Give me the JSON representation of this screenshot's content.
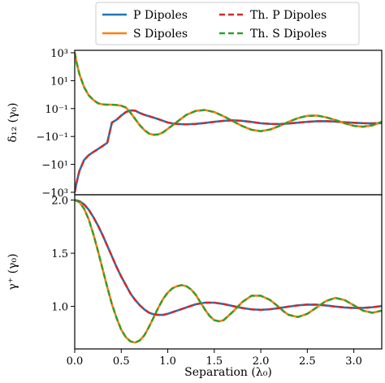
{
  "chart_data": {
    "type": "line",
    "xlabel": "Separation (λ₀)",
    "x_ticks": [
      "0.0",
      "0.5",
      "1.0",
      "1.5",
      "2.0",
      "2.5",
      "3.0"
    ],
    "x_tick_values": [
      0.0,
      0.5,
      1.0,
      1.5,
      2.0,
      2.5,
      3.0
    ],
    "xlim": [
      0.0,
      3.3
    ],
    "legend": {
      "placement": "top-center",
      "entries": [
        {
          "label": "P Dipoles",
          "color": "#1f77b4",
          "style": "solid"
        },
        {
          "label": "S Dipoles",
          "color": "#ff7f0e",
          "style": "solid"
        },
        {
          "label": "Th. P Dipoles",
          "color": "#d62728",
          "style": "dashed"
        },
        {
          "label": "Th. S Dipoles",
          "color": "#2ca02c",
          "style": "dashed"
        }
      ]
    },
    "panels": [
      {
        "ylabel": "δ₁₂ (γ₀)",
        "yscale": "symlog",
        "ylim": [
          -1500,
          1500
        ],
        "y_ticks": [
          "10³",
          "10¹",
          "10⁻¹",
          "−10⁻¹",
          "−10¹",
          "−10³"
        ],
        "y_tick_values": [
          1000,
          10,
          0.1,
          -0.1,
          -10,
          -1000
        ],
        "series": [
          {
            "label_ref": "P Dipoles",
            "x": [
              0.0,
              0.02,
              0.05,
              0.1,
              0.15,
              0.2,
              0.25,
              0.3,
              0.35,
              0.4,
              0.45,
              0.5,
              0.55,
              0.6,
              0.65,
              0.7,
              0.75,
              0.8,
              0.85,
              0.9,
              0.95,
              1.0,
              1.05,
              1.1,
              1.15,
              1.2,
              1.3,
              1.4,
              1.5,
              1.6,
              1.7,
              1.8,
              1.9,
              2.0,
              2.1,
              2.2,
              2.3,
              2.4,
              2.5,
              2.6,
              2.7,
              2.8,
              2.9,
              3.0,
              3.1,
              3.2,
              3.3
            ],
            "y": [
              -1000,
              -200,
              -30,
              -5,
              -2.2,
              -1.3,
              -0.8,
              -0.48,
              -0.28,
              0.0,
              0.02,
              0.05,
              0.075,
              0.087,
              0.085,
              0.068,
              0.055,
              0.045,
              0.035,
              0.024,
              0.012,
              0.0,
              -0.006,
              -0.01,
              -0.012,
              -0.013,
              -0.01,
              -0.003,
              0.005,
              0.012,
              0.016,
              0.012,
              0.004,
              -0.005,
              -0.01,
              -0.011,
              -0.007,
              -0.001,
              0.005,
              0.009,
              0.01,
              0.007,
              0.002,
              -0.002,
              -0.005,
              -0.006,
              -0.004
            ]
          },
          {
            "label_ref": "S Dipoles",
            "x": [
              0.0,
              0.02,
              0.05,
              0.1,
              0.15,
              0.2,
              0.25,
              0.3,
              0.35,
              0.4,
              0.45,
              0.5,
              0.55,
              0.6,
              0.65,
              0.7,
              0.75,
              0.8,
              0.85,
              0.9,
              0.95,
              1.0,
              1.05,
              1.1,
              1.15,
              1.2,
              1.3,
              1.4,
              1.5,
              1.6,
              1.7,
              1.8,
              1.9,
              2.0,
              2.1,
              2.2,
              2.3,
              2.4,
              2.5,
              2.6,
              2.7,
              2.8,
              2.9,
              3.0,
              3.1,
              3.2,
              3.3
            ],
            "y": [
              1000,
              200,
              30,
              3.5,
              0.9,
              0.42,
              0.24,
              0.2,
              0.19,
              0.19,
              0.18,
              0.16,
              0.12,
              0.07,
              0.025,
              -0.02,
              -0.055,
              -0.08,
              -0.088,
              -0.085,
              -0.07,
              -0.045,
              -0.02,
              0.005,
              0.03,
              0.055,
              0.083,
              0.09,
              0.075,
              0.045,
              0.01,
              -0.025,
              -0.052,
              -0.062,
              -0.05,
              -0.025,
              0.005,
              0.032,
              0.048,
              0.05,
              0.038,
              0.018,
              -0.005,
              -0.024,
              -0.03,
              -0.02,
              0.005
            ]
          },
          {
            "label_ref": "Th. P Dipoles",
            "x": [
              0.0,
              0.02,
              0.05,
              0.1,
              0.15,
              0.2,
              0.25,
              0.3,
              0.35,
              0.4,
              0.45,
              0.5,
              0.55,
              0.6,
              0.65,
              0.7,
              0.75,
              0.8,
              0.85,
              0.9,
              0.95,
              1.0,
              1.05,
              1.1,
              1.15,
              1.2,
              1.3,
              1.4,
              1.5,
              1.6,
              1.7,
              1.8,
              1.9,
              2.0,
              2.1,
              2.2,
              2.3,
              2.4,
              2.5,
              2.6,
              2.7,
              2.8,
              2.9,
              3.0,
              3.1,
              3.2,
              3.3
            ],
            "y": [
              -1000,
              -200,
              -30,
              -5,
              -2.2,
              -1.3,
              -0.8,
              -0.48,
              -0.28,
              0.0,
              0.02,
              0.05,
              0.075,
              0.087,
              0.085,
              0.068,
              0.055,
              0.045,
              0.035,
              0.024,
              0.012,
              0.0,
              -0.006,
              -0.01,
              -0.012,
              -0.013,
              -0.01,
              -0.003,
              0.005,
              0.012,
              0.016,
              0.012,
              0.004,
              -0.005,
              -0.01,
              -0.011,
              -0.007,
              -0.001,
              0.005,
              0.009,
              0.01,
              0.007,
              0.002,
              -0.002,
              -0.005,
              -0.006,
              -0.004
            ]
          },
          {
            "label_ref": "Th. S Dipoles",
            "x": [
              0.0,
              0.02,
              0.05,
              0.1,
              0.15,
              0.2,
              0.25,
              0.3,
              0.35,
              0.4,
              0.45,
              0.5,
              0.55,
              0.6,
              0.65,
              0.7,
              0.75,
              0.8,
              0.85,
              0.9,
              0.95,
              1.0,
              1.05,
              1.1,
              1.15,
              1.2,
              1.3,
              1.4,
              1.5,
              1.6,
              1.7,
              1.8,
              1.9,
              2.0,
              2.1,
              2.2,
              2.3,
              2.4,
              2.5,
              2.6,
              2.7,
              2.8,
              2.9,
              3.0,
              3.1,
              3.2,
              3.3
            ],
            "y": [
              1000,
              200,
              30,
              3.5,
              0.9,
              0.42,
              0.24,
              0.2,
              0.19,
              0.19,
              0.18,
              0.16,
              0.12,
              0.07,
              0.025,
              -0.02,
              -0.055,
              -0.08,
              -0.088,
              -0.085,
              -0.07,
              -0.045,
              -0.02,
              0.005,
              0.03,
              0.055,
              0.083,
              0.09,
              0.075,
              0.045,
              0.01,
              -0.025,
              -0.052,
              -0.062,
              -0.05,
              -0.025,
              0.005,
              0.032,
              0.048,
              0.05,
              0.038,
              0.018,
              -0.005,
              -0.024,
              -0.03,
              -0.02,
              0.005
            ]
          }
        ]
      },
      {
        "ylabel": "γ⁺ (γ₀)",
        "yscale": "linear",
        "ylim": [
          0.6,
          2.05
        ],
        "y_ticks": [
          "1.0",
          "1.5",
          "2.0"
        ],
        "y_tick_values": [
          1.0,
          1.5,
          2.0
        ],
        "series": [
          {
            "label_ref": "P Dipoles",
            "x": [
              0.0,
              0.05,
              0.1,
              0.15,
              0.2,
              0.25,
              0.3,
              0.35,
              0.4,
              0.45,
              0.5,
              0.55,
              0.6,
              0.65,
              0.7,
              0.75,
              0.8,
              0.85,
              0.9,
              0.95,
              1.0,
              1.05,
              1.1,
              1.15,
              1.2,
              1.3,
              1.4,
              1.5,
              1.6,
              1.7,
              1.8,
              1.9,
              2.0,
              2.1,
              2.2,
              2.3,
              2.4,
              2.5,
              2.6,
              2.7,
              2.8,
              2.9,
              3.0,
              3.1,
              3.2,
              3.3
            ],
            "y": [
              2.0,
              1.99,
              1.96,
              1.91,
              1.84,
              1.76,
              1.67,
              1.57,
              1.47,
              1.37,
              1.28,
              1.2,
              1.12,
              1.06,
              1.01,
              0.97,
              0.94,
              0.925,
              0.92,
              0.92,
              0.93,
              0.945,
              0.96,
              0.975,
              0.99,
              1.02,
              1.035,
              1.035,
              1.022,
              1.003,
              0.985,
              0.972,
              0.968,
              0.973,
              0.985,
              0.998,
              1.01,
              1.017,
              1.016,
              1.009,
              0.998,
              0.99,
              0.985,
              0.986,
              0.992,
              1.003
            ]
          },
          {
            "label_ref": "S Dipoles",
            "x": [
              0.0,
              0.05,
              0.1,
              0.15,
              0.2,
              0.25,
              0.3,
              0.35,
              0.4,
              0.45,
              0.5,
              0.55,
              0.6,
              0.65,
              0.7,
              0.75,
              0.8,
              0.85,
              0.9,
              0.95,
              1.0,
              1.05,
              1.1,
              1.15,
              1.2,
              1.25,
              1.3,
              1.35,
              1.4,
              1.45,
              1.5,
              1.55,
              1.6,
              1.7,
              1.8,
              1.9,
              2.0,
              2.1,
              2.2,
              2.25,
              2.3,
              2.4,
              2.5,
              2.6,
              2.7,
              2.8,
              2.9,
              3.0,
              3.1,
              3.2,
              3.3
            ],
            "y": [
              2.0,
              1.98,
              1.92,
              1.82,
              1.68,
              1.52,
              1.35,
              1.18,
              1.02,
              0.89,
              0.78,
              0.71,
              0.67,
              0.66,
              0.68,
              0.73,
              0.81,
              0.9,
              0.99,
              1.07,
              1.13,
              1.17,
              1.19,
              1.2,
              1.19,
              1.16,
              1.11,
              1.04,
              0.97,
              0.91,
              0.87,
              0.86,
              0.87,
              0.95,
              1.04,
              1.1,
              1.1,
              1.06,
              0.99,
              0.95,
              0.92,
              0.9,
              0.93,
              0.99,
              1.05,
              1.08,
              1.06,
              1.01,
              0.96,
              0.94,
              0.96
            ]
          },
          {
            "label_ref": "Th. P Dipoles",
            "x": [
              0.0,
              0.05,
              0.1,
              0.15,
              0.2,
              0.25,
              0.3,
              0.35,
              0.4,
              0.45,
              0.5,
              0.55,
              0.6,
              0.65,
              0.7,
              0.75,
              0.8,
              0.85,
              0.9,
              0.95,
              1.0,
              1.05,
              1.1,
              1.15,
              1.2,
              1.3,
              1.4,
              1.5,
              1.6,
              1.7,
              1.8,
              1.9,
              2.0,
              2.1,
              2.2,
              2.3,
              2.4,
              2.5,
              2.6,
              2.7,
              2.8,
              2.9,
              3.0,
              3.1,
              3.2,
              3.3
            ],
            "y": [
              2.0,
              1.99,
              1.96,
              1.91,
              1.84,
              1.76,
              1.67,
              1.57,
              1.47,
              1.37,
              1.28,
              1.2,
              1.12,
              1.06,
              1.01,
              0.97,
              0.94,
              0.925,
              0.92,
              0.92,
              0.93,
              0.945,
              0.96,
              0.975,
              0.99,
              1.02,
              1.035,
              1.035,
              1.022,
              1.003,
              0.985,
              0.972,
              0.968,
              0.973,
              0.985,
              0.998,
              1.01,
              1.017,
              1.016,
              1.009,
              0.998,
              0.99,
              0.985,
              0.986,
              0.992,
              1.003
            ]
          },
          {
            "label_ref": "Th. S Dipoles",
            "x": [
              0.0,
              0.05,
              0.1,
              0.15,
              0.2,
              0.25,
              0.3,
              0.35,
              0.4,
              0.45,
              0.5,
              0.55,
              0.6,
              0.65,
              0.7,
              0.75,
              0.8,
              0.85,
              0.9,
              0.95,
              1.0,
              1.05,
              1.1,
              1.15,
              1.2,
              1.25,
              1.3,
              1.35,
              1.4,
              1.45,
              1.5,
              1.55,
              1.6,
              1.7,
              1.8,
              1.9,
              2.0,
              2.1,
              2.2,
              2.25,
              2.3,
              2.4,
              2.5,
              2.6,
              2.7,
              2.8,
              2.9,
              3.0,
              3.1,
              3.2,
              3.3
            ],
            "y": [
              2.0,
              1.98,
              1.92,
              1.82,
              1.68,
              1.52,
              1.35,
              1.18,
              1.02,
              0.89,
              0.78,
              0.71,
              0.67,
              0.66,
              0.68,
              0.73,
              0.81,
              0.9,
              0.99,
              1.07,
              1.13,
              1.17,
              1.19,
              1.2,
              1.19,
              1.16,
              1.11,
              1.04,
              0.97,
              0.91,
              0.87,
              0.86,
              0.87,
              0.95,
              1.04,
              1.1,
              1.1,
              1.06,
              0.99,
              0.95,
              0.92,
              0.9,
              0.93,
              0.99,
              1.05,
              1.08,
              1.06,
              1.01,
              0.96,
              0.94,
              0.96
            ]
          }
        ]
      }
    ]
  }
}
